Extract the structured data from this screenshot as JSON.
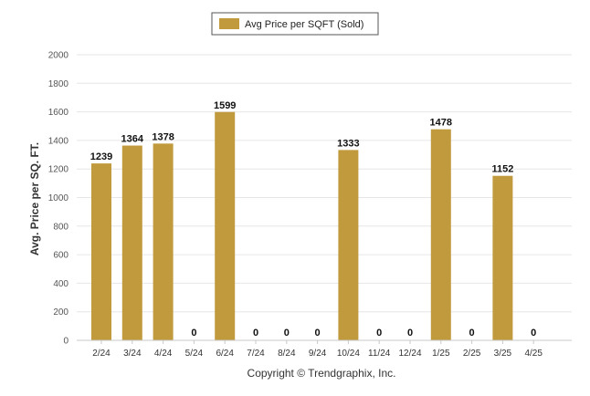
{
  "chart_data": {
    "type": "bar",
    "categories": [
      "2/24",
      "3/24",
      "4/24",
      "5/24",
      "6/24",
      "7/24",
      "8/24",
      "9/24",
      "10/24",
      "11/24",
      "12/24",
      "1/25",
      "2/25",
      "3/25",
      "4/25"
    ],
    "series": [
      {
        "name": "Avg Price per SQFT (Sold)",
        "values": [
          1239,
          1364,
          1378,
          0,
          1599,
          0,
          0,
          0,
          1333,
          0,
          0,
          1478,
          0,
          1152,
          0
        ]
      }
    ],
    "ylabel": "Avg. Price per SQ. FT.",
    "ylim": [
      0,
      2000
    ],
    "yticks": [
      0,
      200,
      400,
      600,
      800,
      1000,
      1200,
      1400,
      1600,
      1800,
      2000
    ],
    "grid": true,
    "legend": "top-center",
    "bar_color": "#C19A3E",
    "footer": "Copyright © Trendgraphix, Inc."
  }
}
